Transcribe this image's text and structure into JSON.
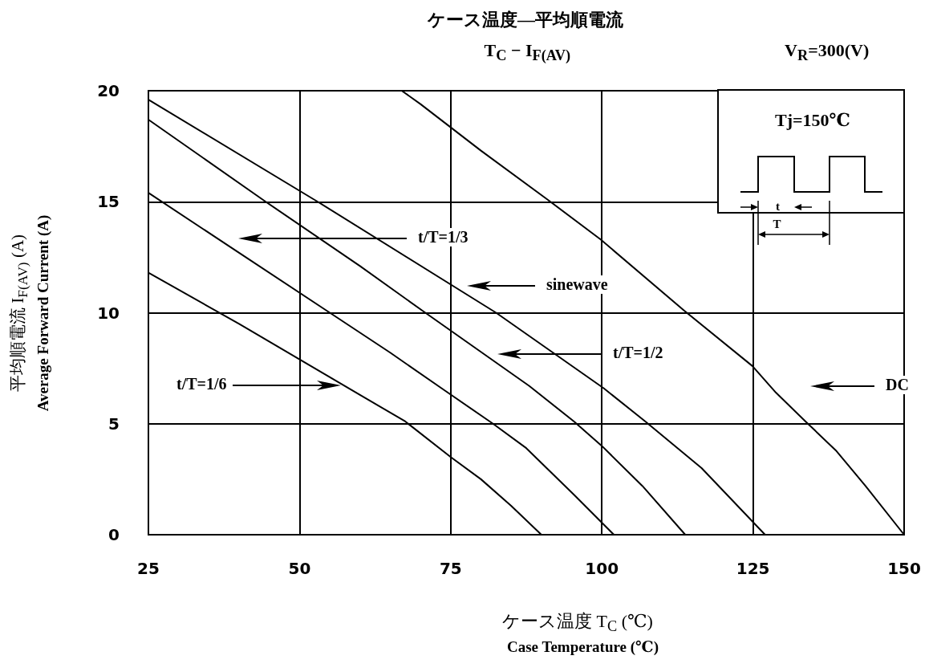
{
  "chart_data": {
    "type": "line",
    "title": "ケース温度―平均順電流",
    "subtitle": "T$_{C}$ − I$_{F(AV)}$",
    "xlabel": "ケース温度 T$_{C}$ (℃)\nCase Temperature (℃)",
    "ylabel": "平均順電流 I$_{F(AV)}$ (A)\nAverage Forward Current (A)",
    "xlim": [
      25,
      150
    ],
    "xticks": [
      25,
      50,
      75,
      100,
      125,
      150
    ],
    "ylim": [
      0,
      20
    ],
    "yticks": [
      0,
      5,
      10,
      15,
      20
    ],
    "grid": true,
    "marker": "none",
    "series": [
      {
        "color": "#000000",
        "x": [
          25,
          40,
          50,
          60,
          67.5,
          75,
          80,
          85,
          90
        ],
        "values": [
          11.8,
          9.5,
          7.9,
          6.3,
          5.1,
          3.5,
          2.5,
          1.3,
          0
        ]
      },
      {
        "color": "#000000",
        "x": [
          25,
          40,
          55,
          65,
          74,
          82,
          87.5,
          95.4,
          102
        ],
        "values": [
          15.4,
          12.7,
          10,
          8.2,
          6.5,
          5,
          3.9,
          1.8,
          0
        ]
      },
      {
        "color": "#000000",
        "x": [
          25,
          44.4,
          60,
          70.8,
          88,
          95.4,
          100,
          106.7,
          113.8
        ],
        "values": [
          18.7,
          15,
          12.1,
          10,
          6.7,
          5.1,
          4,
          2.2,
          0
        ]
      },
      {
        "color": "#000000",
        "x": [
          25,
          53,
          82.5,
          100.3,
          107.2,
          116.5,
          127
        ],
        "values": [
          19.6,
          15,
          10,
          6.6,
          5.1,
          3,
          0
        ]
      },
      {
        "color": "#000000",
        "x": [
          66.9,
          70,
          80,
          91,
          99.8,
          113.6,
          124.9,
          128.8,
          133.7,
          138.7,
          143.6,
          150
        ],
        "values": [
          20,
          19.4,
          17.3,
          15.1,
          13.3,
          10.1,
          7.6,
          6.4,
          5.1,
          3.8,
          2.2,
          0
        ]
      }
    ],
    "annotations": [
      "V$_{R}$=300(V)",
      "Tj=150℃",
      "t",
      "T",
      "t/T=1/3",
      "sinewave",
      "t/T=1/2",
      "DC",
      "t/T=1/6"
    ]
  }
}
